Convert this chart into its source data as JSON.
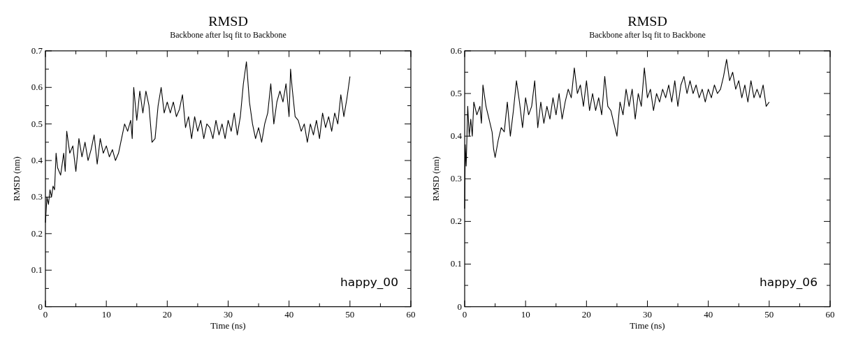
{
  "chart_data": [
    {
      "type": "line",
      "title": "RMSD",
      "subtitle": "Backbone after lsq fit to Backbone",
      "xlabel": "Time (ns)",
      "ylabel": "RMSD (nm)",
      "annotations": [
        "happy_00"
      ],
      "x": [
        0,
        0.25,
        0.5,
        0.75,
        1,
        1.25,
        1.5,
        1.75,
        2,
        2.5,
        3,
        3.25,
        3.5,
        4,
        4.5,
        5,
        5.5,
        6,
        6.5,
        7,
        7.5,
        8,
        8.5,
        9,
        9.5,
        10,
        10.5,
        11,
        11.5,
        12,
        12.5,
        13,
        13.5,
        14,
        14.25,
        14.5,
        15,
        15.5,
        16,
        16.5,
        17,
        17.5,
        18,
        18.5,
        19,
        19.5,
        20,
        20.5,
        21,
        21.5,
        22,
        22.5,
        23,
        23.5,
        24,
        24.5,
        25,
        25.5,
        26,
        26.5,
        27,
        27.5,
        28,
        28.5,
        29,
        29.5,
        30,
        30.5,
        31,
        31.5,
        32,
        32.5,
        33,
        33.5,
        34,
        34.5,
        35,
        35.5,
        36,
        36.5,
        37,
        37.5,
        38,
        38.5,
        39,
        39.5,
        40,
        40.25,
        40.5,
        41,
        41.5,
        42,
        42.5,
        43,
        43.5,
        44,
        44.5,
        45,
        45.5,
        46,
        46.5,
        47,
        47.5,
        48,
        48.5,
        49,
        49.5,
        50
      ],
      "series": [
        {
          "color": "#000000",
          "values": [
            0.23,
            0.3,
            0.28,
            0.32,
            0.3,
            0.33,
            0.32,
            0.42,
            0.38,
            0.36,
            0.42,
            0.37,
            0.48,
            0.42,
            0.44,
            0.37,
            0.46,
            0.41,
            0.45,
            0.4,
            0.43,
            0.47,
            0.39,
            0.46,
            0.42,
            0.44,
            0.41,
            0.43,
            0.4,
            0.42,
            0.46,
            0.5,
            0.48,
            0.51,
            0.46,
            0.6,
            0.51,
            0.59,
            0.53,
            0.59,
            0.55,
            0.45,
            0.46,
            0.55,
            0.6,
            0.53,
            0.56,
            0.53,
            0.56,
            0.52,
            0.54,
            0.58,
            0.49,
            0.52,
            0.46,
            0.52,
            0.48,
            0.51,
            0.46,
            0.5,
            0.49,
            0.46,
            0.51,
            0.47,
            0.5,
            0.46,
            0.51,
            0.48,
            0.53,
            0.47,
            0.52,
            0.61,
            0.67,
            0.56,
            0.5,
            0.46,
            0.49,
            0.45,
            0.5,
            0.53,
            0.61,
            0.5,
            0.56,
            0.59,
            0.56,
            0.61,
            0.52,
            0.65,
            0.6,
            0.52,
            0.51,
            0.48,
            0.5,
            0.45,
            0.5,
            0.47,
            0.51,
            0.46,
            0.53,
            0.49,
            0.52,
            0.48,
            0.53,
            0.5,
            0.58,
            0.52,
            0.57,
            0.63
          ]
        }
      ],
      "xlim": [
        0,
        60
      ],
      "ylim": [
        0,
        0.7
      ],
      "xticks": [
        0,
        {
          "value": 5,
          "label": null
        },
        10,
        {
          "value": 15,
          "label": null
        },
        20,
        {
          "value": 25,
          "label": null
        },
        30,
        {
          "value": 35,
          "label": null
        },
        40,
        {
          "value": 45,
          "label": null
        },
        50,
        {
          "value": 55,
          "label": null
        },
        60
      ],
      "yticks": [
        0,
        {
          "value": 0.05,
          "label": null
        },
        0.1,
        {
          "value": 0.15,
          "label": null
        },
        0.2,
        {
          "value": 0.25,
          "label": null
        },
        0.3,
        {
          "value": 0.35,
          "label": null
        },
        0.4,
        {
          "value": 0.45,
          "label": null
        },
        0.5,
        {
          "value": 0.55,
          "label": null
        },
        0.6,
        {
          "value": 0.65,
          "label": null
        },
        0.7
      ]
    },
    {
      "type": "line",
      "title": "RMSD",
      "subtitle": "Backbone after lsq fit to Backbone",
      "xlabel": "Time (ns)",
      "ylabel": "RMSD (nm)",
      "annotations": [
        "happy_06"
      ],
      "x": [
        0,
        0.1,
        0.25,
        0.5,
        0.75,
        1,
        1.25,
        1.5,
        2,
        2.5,
        2.75,
        3,
        3.5,
        4,
        4.5,
        4.75,
        5,
        5.5,
        6,
        6.5,
        7,
        7.5,
        8,
        8.5,
        9,
        9.5,
        10,
        10.5,
        11,
        11.5,
        12,
        12.5,
        13,
        13.5,
        14,
        14.5,
        15,
        15.5,
        16,
        16.5,
        17,
        17.5,
        18,
        18.5,
        19,
        19.5,
        20,
        20.5,
        21,
        21.5,
        22,
        22.5,
        23,
        23.5,
        24,
        24.5,
        25,
        25.5,
        26,
        26.5,
        27,
        27.5,
        28,
        28.5,
        29,
        29.5,
        30,
        30.5,
        31,
        31.5,
        32,
        32.5,
        33,
        33.5,
        34,
        34.5,
        35,
        35.5,
        36,
        36.5,
        37,
        37.5,
        38,
        38.5,
        39,
        39.5,
        40,
        40.5,
        41,
        41.5,
        42,
        42.5,
        43,
        43.5,
        44,
        44.5,
        45,
        45.5,
        46,
        46.5,
        47,
        47.5,
        48,
        48.5,
        49,
        49.5,
        50
      ],
      "series": [
        {
          "color": "#000000",
          "values": [
            0.23,
            0.38,
            0.33,
            0.47,
            0.4,
            0.44,
            0.4,
            0.48,
            0.45,
            0.47,
            0.43,
            0.52,
            0.47,
            0.44,
            0.41,
            0.37,
            0.35,
            0.39,
            0.42,
            0.41,
            0.48,
            0.4,
            0.46,
            0.53,
            0.48,
            0.42,
            0.49,
            0.45,
            0.47,
            0.53,
            0.42,
            0.48,
            0.43,
            0.47,
            0.44,
            0.49,
            0.45,
            0.5,
            0.44,
            0.48,
            0.51,
            0.49,
            0.56,
            0.5,
            0.52,
            0.47,
            0.53,
            0.46,
            0.5,
            0.46,
            0.49,
            0.45,
            0.54,
            0.47,
            0.46,
            0.43,
            0.4,
            0.48,
            0.45,
            0.51,
            0.47,
            0.51,
            0.44,
            0.5,
            0.47,
            0.56,
            0.49,
            0.51,
            0.46,
            0.5,
            0.48,
            0.51,
            0.49,
            0.52,
            0.48,
            0.53,
            0.47,
            0.52,
            0.54,
            0.5,
            0.53,
            0.5,
            0.52,
            0.49,
            0.51,
            0.48,
            0.51,
            0.49,
            0.52,
            0.5,
            0.51,
            0.54,
            0.58,
            0.53,
            0.55,
            0.51,
            0.53,
            0.49,
            0.52,
            0.48,
            0.53,
            0.49,
            0.51,
            0.49,
            0.52,
            0.47,
            0.48
          ]
        }
      ],
      "xlim": [
        0,
        60
      ],
      "ylim": [
        0,
        0.6
      ],
      "xticks": [
        0,
        {
          "value": 5,
          "label": null
        },
        10,
        {
          "value": 15,
          "label": null
        },
        20,
        {
          "value": 25,
          "label": null
        },
        30,
        {
          "value": 35,
          "label": null
        },
        40,
        {
          "value": 45,
          "label": null
        },
        50,
        {
          "value": 55,
          "label": null
        },
        60
      ],
      "yticks": [
        0,
        {
          "value": 0.05,
          "label": null
        },
        0.1,
        {
          "value": 0.15,
          "label": null
        },
        0.2,
        {
          "value": 0.25,
          "label": null
        },
        0.3,
        {
          "value": 0.35,
          "label": null
        },
        0.4,
        {
          "value": 0.45,
          "label": null
        },
        0.5,
        {
          "value": 0.55,
          "label": null
        },
        0.6
      ]
    }
  ]
}
